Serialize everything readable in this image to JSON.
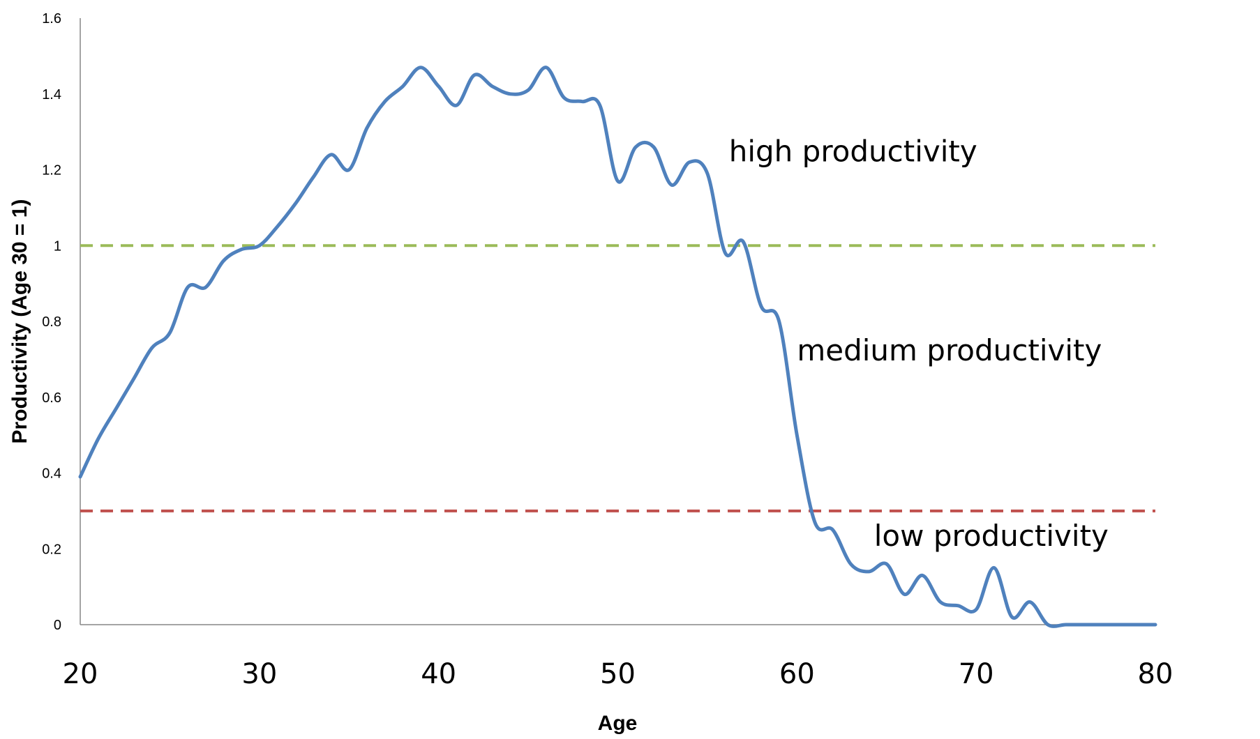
{
  "chart_data": {
    "type": "line",
    "title": "",
    "xlabel": "Age",
    "ylabel": "Productivity (Age 30 = 1)",
    "xlim": [
      20,
      80
    ],
    "ylim": [
      0,
      1.6
    ],
    "x_ticks": [
      "20",
      "30",
      "40",
      "50",
      "60",
      "70",
      "80"
    ],
    "y_ticks": [
      "0",
      "0.2",
      "0.4",
      "0.6",
      "0.8",
      "1",
      "1.2",
      "1.4",
      "1.6"
    ],
    "grid": false,
    "legend": "none",
    "series": [
      {
        "color": "#4f81bd",
        "x": [
          20,
          21,
          22,
          23,
          24,
          25,
          26,
          27,
          28,
          29,
          30,
          31,
          32,
          33,
          34,
          35,
          36,
          37,
          38,
          39,
          40,
          41,
          42,
          43,
          44,
          45,
          46,
          47,
          48,
          49,
          50,
          51,
          52,
          53,
          54,
          55,
          56,
          57,
          58,
          59,
          60,
          61,
          62,
          63,
          64,
          65,
          66,
          67,
          68,
          69,
          70,
          71,
          72,
          73,
          74,
          75,
          76,
          77,
          78,
          79,
          80
        ],
        "values": [
          0.39,
          0.49,
          0.57,
          0.65,
          0.73,
          0.77,
          0.89,
          0.89,
          0.96,
          0.99,
          1.0,
          1.05,
          1.11,
          1.18,
          1.24,
          1.2,
          1.31,
          1.38,
          1.42,
          1.47,
          1.42,
          1.37,
          1.45,
          1.42,
          1.4,
          1.41,
          1.47,
          1.39,
          1.38,
          1.37,
          1.17,
          1.26,
          1.26,
          1.16,
          1.22,
          1.19,
          0.98,
          1.01,
          0.84,
          0.8,
          0.5,
          0.27,
          0.25,
          0.16,
          0.14,
          0.16,
          0.08,
          0.13,
          0.06,
          0.05,
          0.04,
          0.15,
          0.02,
          0.06,
          0.0,
          0.0,
          0.0,
          0.0,
          0.0,
          0.0,
          0.0
        ]
      }
    ],
    "reference_lines": [
      {
        "y": 1.0,
        "color": "#9bbb59",
        "style": "dashed"
      },
      {
        "y": 0.3,
        "color": "#c0504d",
        "style": "dashed"
      }
    ],
    "annotations": [
      {
        "text": "high productivity",
        "x": 56.2,
        "y": 1.25
      },
      {
        "text": "medium productivity",
        "x": 60.0,
        "y": 0.725
      },
      {
        "text": "low productivity",
        "x": 64.3,
        "y": 0.235
      }
    ],
    "colors": {
      "axis": "#868686",
      "line": "#4f81bd",
      "high_ref": "#9bbb59",
      "low_ref": "#c0504d"
    }
  }
}
